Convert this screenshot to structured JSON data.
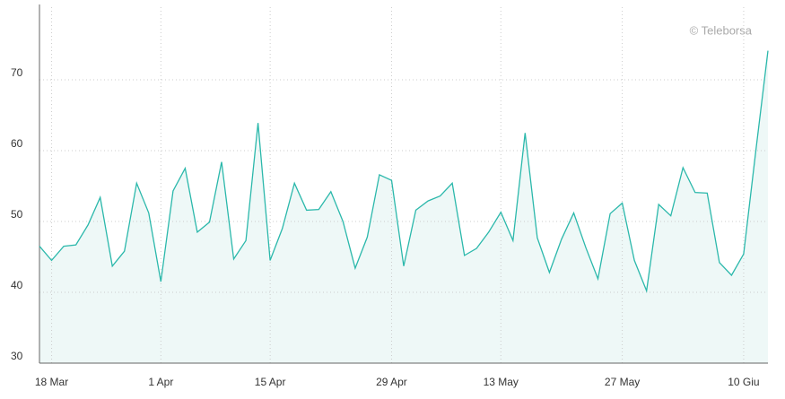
{
  "chart_data": {
    "type": "area",
    "watermark": "© Teleborsa",
    "categories": [
      null,
      "18 Mar",
      null,
      null,
      null,
      null,
      null,
      null,
      null,
      null,
      "1 Apr",
      null,
      null,
      null,
      null,
      null,
      null,
      null,
      null,
      "15 Apr",
      null,
      null,
      null,
      null,
      null,
      null,
      null,
      null,
      null,
      "29 Apr",
      null,
      null,
      null,
      null,
      null,
      null,
      null,
      null,
      "13 May",
      null,
      null,
      null,
      null,
      null,
      null,
      null,
      null,
      null,
      "27 May",
      null,
      null,
      null,
      null,
      null,
      null,
      null,
      null,
      null,
      "10 Giu",
      null,
      null
    ],
    "values": [
      46.5,
      44.5,
      46.5,
      46.7,
      49.5,
      53.4,
      43.7,
      45.8,
      55.4,
      51.2,
      41.5,
      54.3,
      57.5,
      48.5,
      49.9,
      58.4,
      44.7,
      47.3,
      63.9,
      44.5,
      49,
      55.4,
      51.6,
      51.7,
      54.2,
      50,
      43.4,
      47.8,
      56.6,
      55.8,
      43.7,
      51.6,
      52.9,
      53.6,
      55.4,
      45.2,
      46.2,
      48.5,
      51.3,
      47.3,
      62.5,
      47.7,
      42.8,
      47.5,
      51.2,
      46.3,
      41.9,
      51.1,
      52.6,
      44.5,
      40.2,
      52.4,
      50.8,
      57.6,
      54.1,
      54,
      44.2,
      42.4,
      45.4,
      60,
      74.1
    ],
    "color": "#2bb8ab",
    "fill_color": "#eef8f7",
    "ylim": [
      30,
      80
    ],
    "yticks": [
      30,
      40,
      50,
      60,
      70
    ],
    "grid": true
  }
}
